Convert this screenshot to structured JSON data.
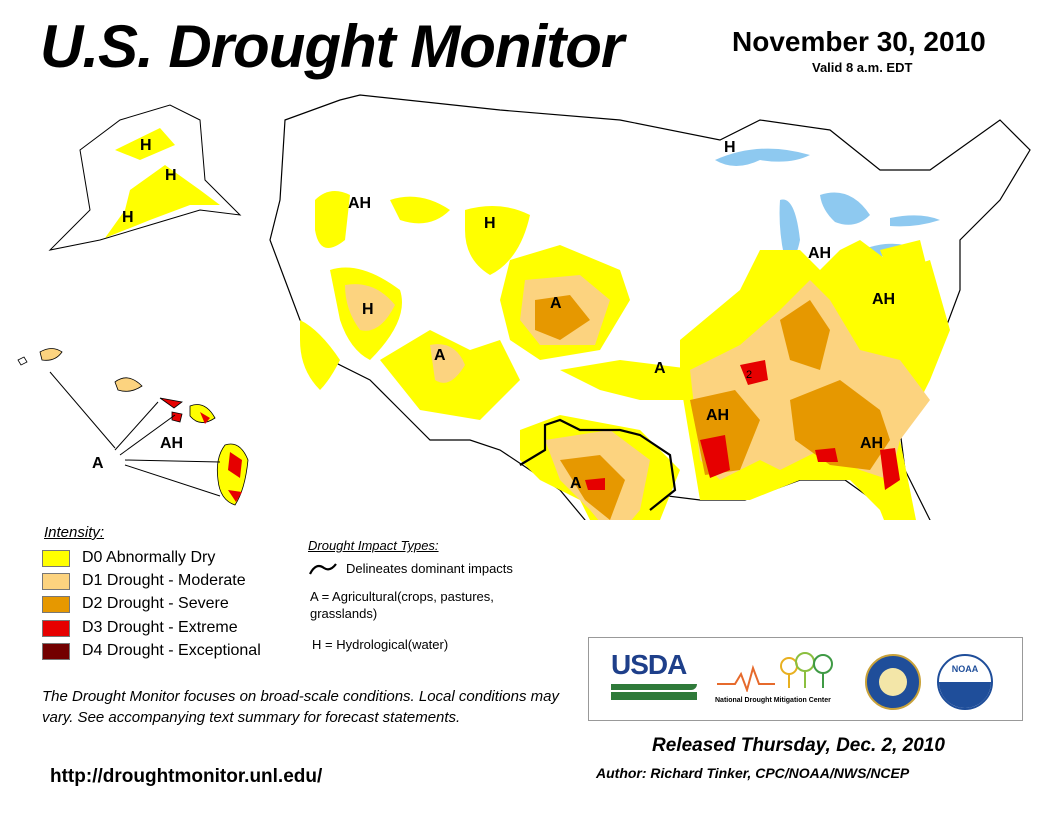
{
  "header": {
    "title": "U.S. Drought Monitor",
    "date": "November 30, 2010",
    "valid": "Valid 8 a.m. EDT"
  },
  "legend": {
    "title": "Intensity:",
    "items": [
      {
        "label": "D0 Abnormally Dry",
        "color": "#ffff00"
      },
      {
        "label": "D1 Drought - Moderate",
        "color": "#fcd37f"
      },
      {
        "label": "D2 Drought - Severe",
        "color": "#e69800"
      },
      {
        "label": "D3 Drought - Extreme",
        "color": "#e60000"
      },
      {
        "label": "D4 Drought - Exceptional",
        "color": "#730000"
      }
    ]
  },
  "impact": {
    "title": "Drought Impact Types:",
    "line_label": "Delineates dominant impacts",
    "a_label": "A = Agricultural(crops, pastures, grasslands)",
    "h_label": "H = Hydrological(water)"
  },
  "map_labels": {
    "ak_h1": "H",
    "ak_h2": "H",
    "ak_h3": "H",
    "hi_a": "A",
    "hi_ah": "AH",
    "ah_nw": "AH",
    "h_nv": "H",
    "h_wy": "H",
    "a_co": "A",
    "a_az": "A",
    "a_ks": "A",
    "ah_ar": "AH",
    "a_tx": "A",
    "ah_mi": "AH",
    "ah_pa": "AH",
    "ah_ga": "AH",
    "h_wi": "H",
    "ar_2": "2"
  },
  "disclaimer": "The Drought Monitor focuses on broad-scale conditions. Local conditions may vary. See accompanying text summary for forecast statements.",
  "url": "http://droughtmonitor.unl.edu/",
  "released": "Released Thursday, Dec. 2, 2010",
  "author": "Author: Richard Tinker, CPC/NOAA/NWS/NCEP",
  "logos": {
    "usda": "USDA",
    "ndmc": "National Drought Mitigation Center",
    "noaa": "NOAA"
  }
}
